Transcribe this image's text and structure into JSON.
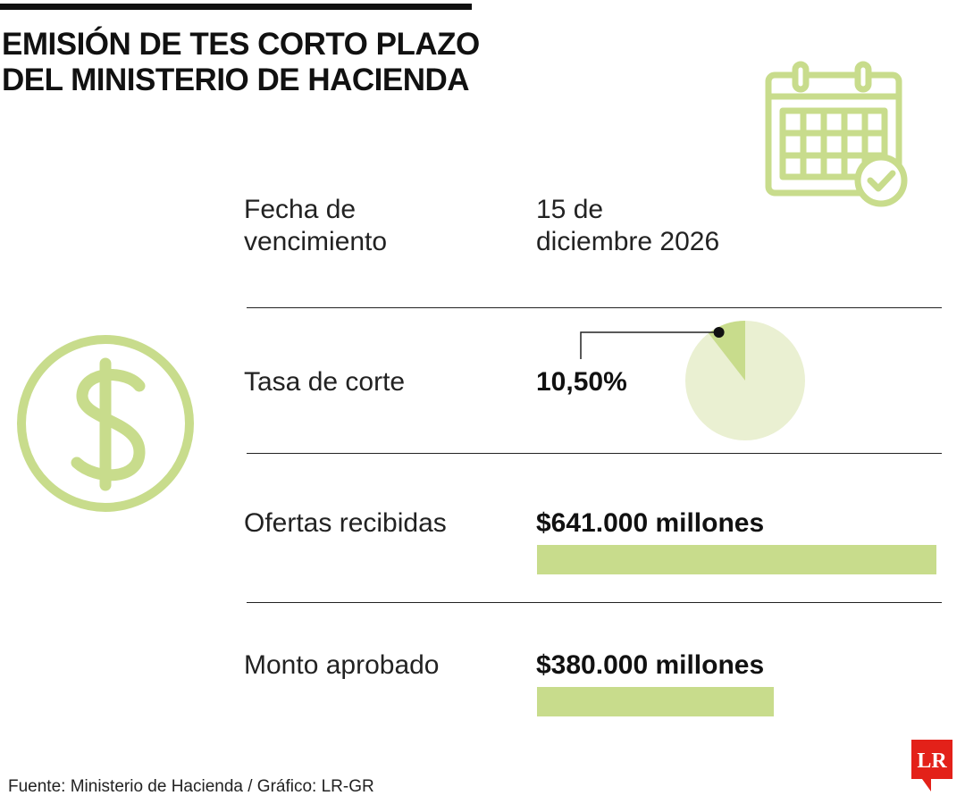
{
  "title": {
    "line1": "EMISIÓN DE TES CORTO PLAZO",
    "line2": "DEL MINISTERIO DE HACIENDA"
  },
  "icons": {
    "calendar": "calendar-check-icon",
    "money": "dollar-circle-icon"
  },
  "colors": {
    "accent": "#c8dc8c",
    "accent_light": "#eaf0d2",
    "logo_red": "#e32119"
  },
  "rows": {
    "fecha": {
      "label_line1": "Fecha de",
      "label_line2": "vencimiento",
      "value_line1": "15 de",
      "value_line2": "diciembre 2026"
    },
    "tasa": {
      "label": "Tasa de corte",
      "value": "10,50%",
      "fraction": 0.105
    },
    "ofertas": {
      "label": "Ofertas recibidas",
      "value": "$641.000 millones",
      "amount": 641000
    },
    "monto": {
      "label": "Monto aprobado",
      "value": "$380.000  millones",
      "amount": 380000
    }
  },
  "source": "Fuente: Ministerio de Hacienda / Gráfico: LR-GR",
  "logo": "LR"
}
